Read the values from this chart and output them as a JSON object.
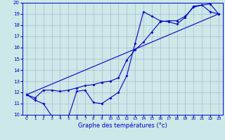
{
  "xlabel": "Graphe des températures (°c)",
  "bg_color": "#cce8e8",
  "grid_color": "#aaaacc",
  "line_color": "#0000cc",
  "xlim": [
    -0.5,
    23.5
  ],
  "ylim": [
    10,
    20
  ],
  "xticks": [
    0,
    1,
    2,
    3,
    4,
    5,
    6,
    7,
    8,
    9,
    10,
    11,
    12,
    13,
    14,
    15,
    16,
    17,
    18,
    19,
    20,
    21,
    22,
    23
  ],
  "yticks": [
    10,
    11,
    12,
    13,
    14,
    15,
    16,
    17,
    18,
    19,
    20
  ],
  "line1_x": [
    0,
    1,
    2,
    3,
    4,
    5,
    6,
    7,
    8,
    9,
    10,
    11,
    12,
    13,
    14,
    15,
    16,
    17,
    18,
    19,
    20,
    21,
    22,
    23
  ],
  "line1_y": [
    11.8,
    11.3,
    11.0,
    9.9,
    9.8,
    9.8,
    12.1,
    12.2,
    11.1,
    11.0,
    11.5,
    12.0,
    13.5,
    16.4,
    19.2,
    18.8,
    18.4,
    18.3,
    18.1,
    18.7,
    19.7,
    19.8,
    19.2,
    19.0
  ],
  "line2_x": [
    0,
    1,
    2,
    3,
    4,
    5,
    6,
    7,
    8,
    9,
    10,
    11,
    12,
    13,
    14,
    15,
    16,
    17,
    18,
    19,
    20,
    21,
    22,
    23
  ],
  "line2_y": [
    11.8,
    11.5,
    12.2,
    12.2,
    12.1,
    12.2,
    12.4,
    12.6,
    12.7,
    12.9,
    13.0,
    13.3,
    14.9,
    15.8,
    16.5,
    17.4,
    18.3,
    18.4,
    18.4,
    18.8,
    19.6,
    19.8,
    19.9,
    19.0
  ],
  "line3_x": [
    0,
    23
  ],
  "line3_y": [
    11.8,
    19.0
  ]
}
